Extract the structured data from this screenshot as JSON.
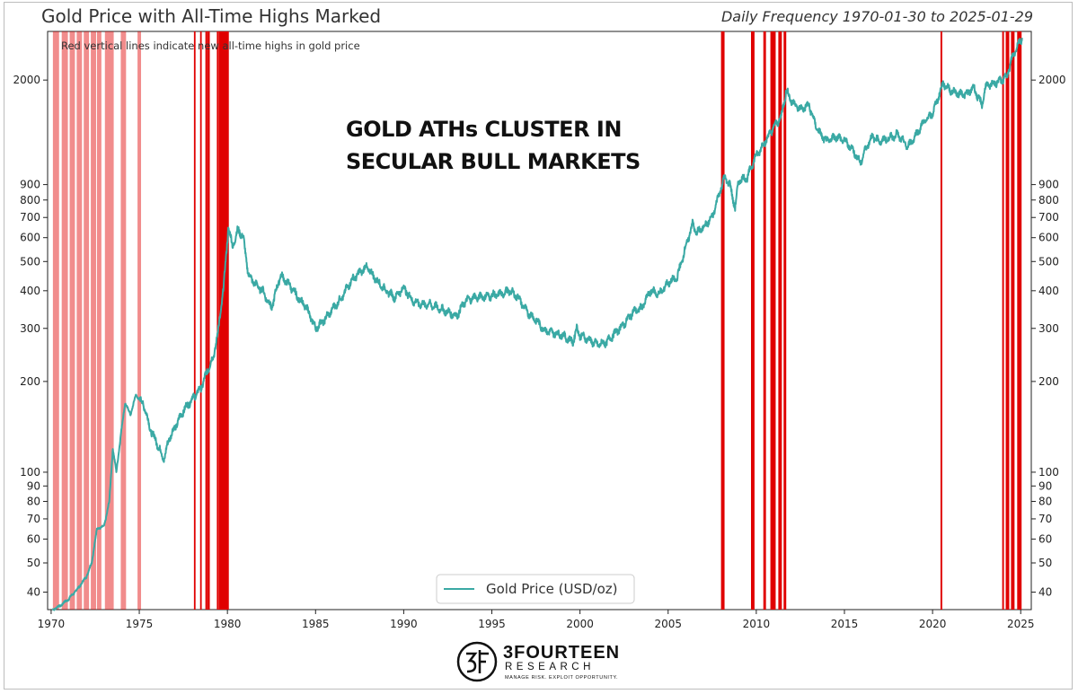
{
  "chart_data": {
    "type": "line",
    "title": "Gold Price with All-Time Highs Marked",
    "subtitle": "Daily Frequency 1970-01-30 to 2025-01-29",
    "annotation": "Red vertical lines indicate new all-time highs in gold price",
    "headline_lines": [
      "GOLD ATHs CLUSTER IN",
      "SECULAR BULL MARKETS"
    ],
    "legend": {
      "label": "Gold Price (USD/oz)",
      "placement": "bottom-center"
    },
    "y_scale": "log",
    "ylim": [
      35,
      2900
    ],
    "xlim": [
      1969.8,
      2025.6
    ],
    "grid": false,
    "x_ticks": [
      "1970",
      "1975",
      "1980",
      "1985",
      "1990",
      "1995",
      "2000",
      "2005",
      "2010",
      "2015",
      "2020",
      "2025"
    ],
    "y_ticks": [
      "40",
      "50",
      "60",
      "70",
      "80",
      "90",
      "100",
      "200",
      "300",
      "400",
      "500",
      "600",
      "700",
      "800",
      "900",
      "2000"
    ],
    "series": [
      {
        "name": "Gold Price (USD/oz)",
        "color": "#3aa9a4",
        "x": [
          1970.08,
          1970.5,
          1971.0,
          1971.5,
          1972.0,
          1972.3,
          1972.6,
          1973.0,
          1973.3,
          1973.5,
          1973.7,
          1974.0,
          1974.2,
          1974.5,
          1974.8,
          1975.0,
          1975.3,
          1975.6,
          1976.0,
          1976.4,
          1976.7,
          1977.0,
          1977.5,
          1978.0,
          1978.5,
          1978.9,
          1979.2,
          1979.5,
          1979.8,
          1980.05,
          1980.3,
          1980.6,
          1980.9,
          1981.2,
          1981.6,
          1982.0,
          1982.5,
          1983.0,
          1983.5,
          1984.0,
          1984.5,
          1985.0,
          1985.5,
          1986.0,
          1986.5,
          1987.0,
          1987.5,
          1987.9,
          1988.5,
          1989.0,
          1989.5,
          1990.0,
          1990.5,
          1991.0,
          1991.5,
          1992.0,
          1992.5,
          1993.0,
          1993.5,
          1994.0,
          1995.0,
          1995.5,
          1996.0,
          1996.5,
          1997.0,
          1997.5,
          1998.0,
          1998.5,
          1999.0,
          1999.6,
          1999.8,
          2000.0,
          2000.5,
          2001.0,
          2001.5,
          2002.0,
          2002.5,
          2003.0,
          2003.5,
          2004.0,
          2004.5,
          2005.0,
          2005.5,
          2006.0,
          2006.4,
          2006.6,
          2007.0,
          2007.5,
          2008.0,
          2008.2,
          2008.5,
          2008.8,
          2009.0,
          2009.5,
          2009.9,
          2010.0,
          2010.5,
          2011.0,
          2011.4,
          2011.7,
          2012.0,
          2012.5,
          2013.0,
          2013.3,
          2013.6,
          2014.0,
          2014.5,
          2015.0,
          2015.5,
          2015.9,
          2016.3,
          2016.6,
          2017.0,
          2017.5,
          2018.0,
          2018.6,
          2019.0,
          2019.5,
          2020.0,
          2020.6,
          2021.0,
          2021.5,
          2022.0,
          2022.3,
          2022.8,
          2023.0,
          2023.5,
          2023.9,
          2024.2,
          2024.5,
          2024.8,
          2025.08
        ],
        "values": [
          35,
          36,
          38,
          41,
          45,
          50,
          65,
          66,
          80,
          120,
          100,
          140,
          170,
          155,
          180,
          175,
          165,
          140,
          125,
          110,
          130,
          140,
          160,
          175,
          190,
          220,
          240,
          300,
          420,
          650,
          560,
          640,
          600,
          450,
          420,
          400,
          350,
          450,
          420,
          380,
          350,
          300,
          320,
          350,
          380,
          430,
          460,
          480,
          430,
          400,
          380,
          410,
          370,
          360,
          360,
          350,
          340,
          330,
          370,
          380,
          385,
          390,
          400,
          380,
          340,
          320,
          295,
          290,
          285,
          270,
          300,
          285,
          275,
          265,
          270,
          290,
          310,
          340,
          350,
          400,
          390,
          425,
          440,
          560,
          670,
          620,
          650,
          700,
          880,
          950,
          900,
          750,
          930,
          950,
          1100,
          1120,
          1250,
          1400,
          1500,
          1850,
          1700,
          1600,
          1650,
          1450,
          1330,
          1250,
          1300,
          1260,
          1170,
          1060,
          1220,
          1300,
          1250,
          1280,
          1320,
          1200,
          1300,
          1450,
          1550,
          1950,
          1850,
          1800,
          1800,
          1900,
          1650,
          1900,
          1950,
          2000,
          2050,
          2350,
          2600,
          2760
        ]
      }
    ],
    "ath_markers": {
      "color": "#e00000",
      "light_periods": [
        [
          1970.1,
          1970.45
        ],
        [
          1970.6,
          1970.95
        ],
        [
          1971.05,
          1971.35
        ],
        [
          1971.45,
          1971.75
        ],
        [
          1971.85,
          1972.15
        ],
        [
          1972.25,
          1972.55
        ],
        [
          1972.6,
          1972.85
        ],
        [
          1973.05,
          1973.55
        ],
        [
          1973.95,
          1974.25
        ],
        [
          1974.9,
          1975.1
        ]
      ],
      "dark_periods": [
        [
          1978.1,
          1978.12
        ],
        [
          1978.45,
          1978.5
        ],
        [
          1978.75,
          1978.8
        ],
        [
          1978.85,
          1979.0
        ],
        [
          1979.4,
          1979.45
        ],
        [
          1979.5,
          1980.08
        ],
        [
          2008.0,
          2008.2
        ],
        [
          2009.7,
          2009.9
        ],
        [
          2010.4,
          2010.55
        ],
        [
          2010.8,
          2011.1
        ],
        [
          2011.25,
          2011.45
        ],
        [
          2011.55,
          2011.7
        ],
        [
          2020.45,
          2020.55
        ],
        [
          2023.95,
          2024.05
        ],
        [
          2024.15,
          2024.35
        ],
        [
          2024.45,
          2024.65
        ],
        [
          2024.8,
          2025.05
        ]
      ]
    }
  },
  "logo": {
    "name": "3FOURTEEN",
    "sub": "RESEARCH",
    "tagline": "MANAGE RISK. EXPLOIT OPPORTUNITY."
  }
}
